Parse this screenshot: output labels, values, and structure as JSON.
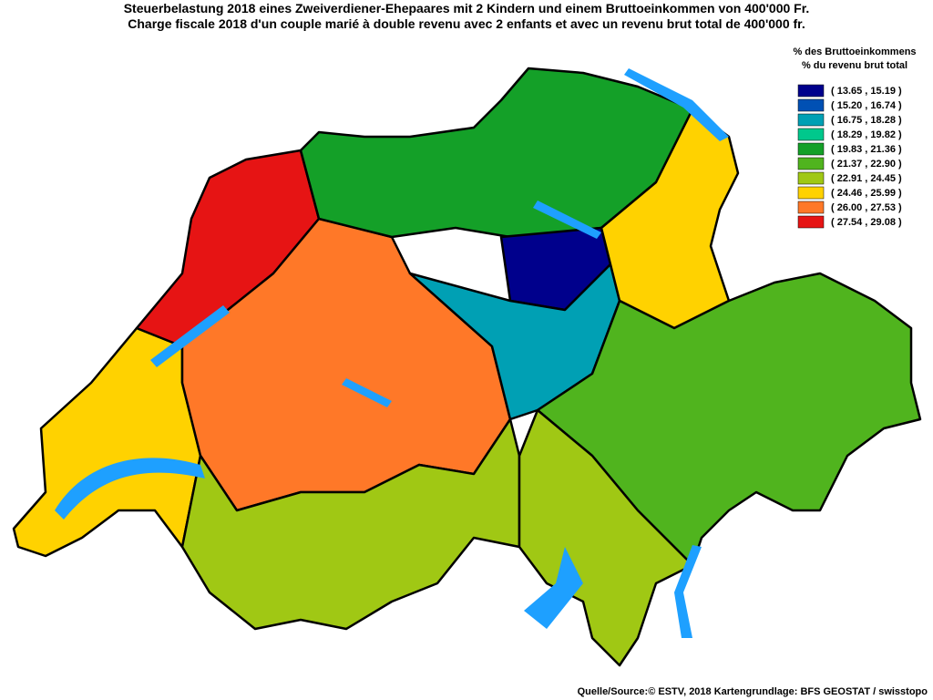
{
  "header": {
    "title_de": "Steuerbelastung 2018 eines Zweiverdiener-Ehepaares mit 2 Kindern und einem Bruttoeinkommen von 400'000 Fr.",
    "title_fr": "Charge fiscale 2018 d'un couple marié à double revenu avec 2 enfants et avec un revenu brut total de 400'000 fr."
  },
  "legend": {
    "title_de": "% des Bruttoeinkommens",
    "title_fr": "% du revenu brut total",
    "items": [
      {
        "label": "( 13.65 , 15.19 )",
        "color": "#00008c"
      },
      {
        "label": "( 15.20 , 16.74 )",
        "color": "#0050b4"
      },
      {
        "label": "( 16.75 , 18.28 )",
        "color": "#00a0b4"
      },
      {
        "label": "( 18.29 , 19.82 )",
        "color": "#00c88c"
      },
      {
        "label": "( 19.83 , 21.36 )",
        "color": "#14a028"
      },
      {
        "label": "( 21.37 , 22.90 )",
        "color": "#50b41e"
      },
      {
        "label": "( 22.91 , 24.45 )",
        "color": "#a0c814"
      },
      {
        "label": "( 24.46 , 25.99 )",
        "color": "#ffd200"
      },
      {
        "label": "( 26.00 , 27.53 )",
        "color": "#ff7828"
      },
      {
        "label": "( 27.54 , 29.08 )",
        "color": "#e61414"
      }
    ]
  },
  "footer": {
    "source": "Quelle/Source:© ESTV, 2018 Kartengrundlage: BFS GEOSTAT / swisstopo"
  }
}
